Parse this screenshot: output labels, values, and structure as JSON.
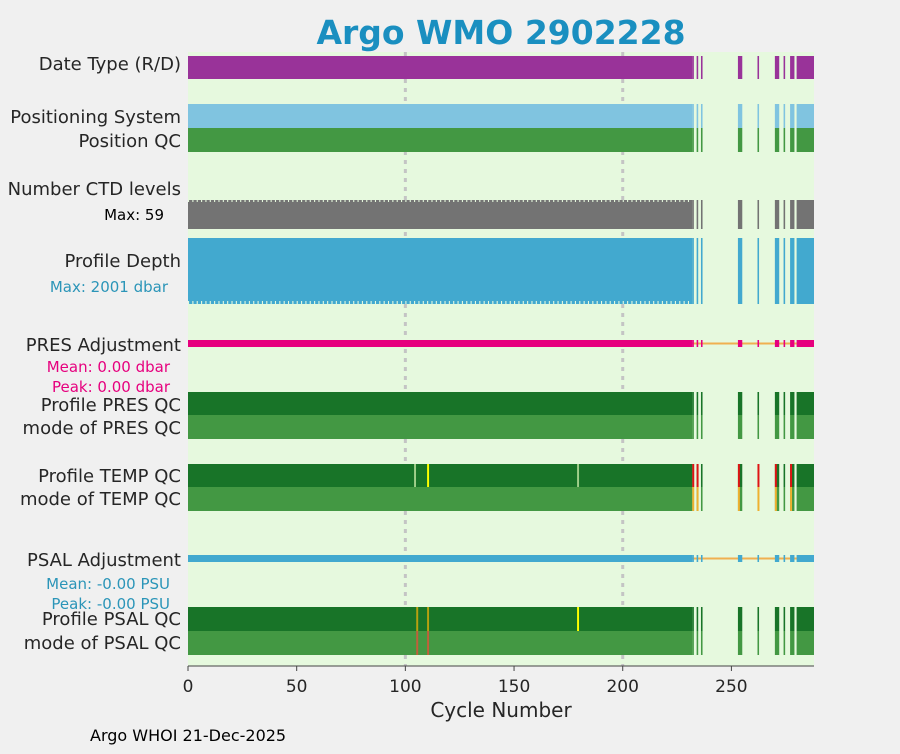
{
  "chart_data": {
    "type": "bar",
    "title": "Argo WMO 2902228",
    "xlabel": "Cycle Number",
    "xlim": [
      0,
      288
    ],
    "xticks": [
      0,
      50,
      100,
      150,
      200,
      250
    ],
    "grid_x": [
      100,
      200
    ],
    "footer": "Argo WHOI 21-Dec-2025",
    "cycles": {
      "ranges": [
        [
          1,
          232
        ],
        [
          233,
          233
        ],
        [
          235,
          235
        ],
        [
          237,
          237
        ],
        [
          254,
          255
        ],
        [
          263,
          263
        ],
        [
          271,
          272
        ],
        [
          275,
          275
        ],
        [
          278,
          279
        ],
        [
          281,
          288
        ]
      ]
    },
    "rows": [
      {
        "id": "date-type",
        "label": "Date Type (R/D)",
        "color": "#993399"
      },
      {
        "id": "positioning-system",
        "label": "Positioning System",
        "color": "#80c4e0"
      },
      {
        "id": "position-qc",
        "label": "Position QC",
        "color": "#439843"
      },
      {
        "id": "n-ctd-levels",
        "label": "Number CTD levels",
        "sublabel": "Max: 59",
        "sublabel_color": "#000000",
        "color": "#737373",
        "max": 59
      },
      {
        "id": "profile-depth",
        "label": "Profile Depth",
        "sublabel": "Max: 2001 dbar",
        "sublabel_color": "#2b95b8",
        "color": "#42a9cf",
        "max_dbar": 2001
      },
      {
        "id": "pres-adjustment",
        "label": "PRES Adjustment",
        "sublabels": [
          "Mean: 0.00 dbar",
          "Peak: 0.00 dbar"
        ],
        "sublabel_color": "#e6007e",
        "color": "#e6007e",
        "mean": 0.0,
        "peak": 0.0
      },
      {
        "id": "profile-pres-qc",
        "label": "Profile PRES QC",
        "color": "#187428"
      },
      {
        "id": "mode-pres-qc",
        "label": "mode of PRES QC",
        "color": "#439843"
      },
      {
        "id": "profile-temp-qc",
        "label": "Profile TEMP QC",
        "color": "#187428",
        "flags": [
          {
            "cycle": 105,
            "color": "#a0cf8a"
          },
          {
            "cycle": 111,
            "color": "#ffff00"
          },
          {
            "cycle": 180,
            "color": "#a0cf8a"
          },
          {
            "cycle": 233,
            "color": "#e01414"
          },
          {
            "cycle": 235,
            "color": "#e01414"
          },
          {
            "cycle": 254,
            "color": "#e01414"
          },
          {
            "cycle": 263,
            "color": "#e01414"
          },
          {
            "cycle": 271,
            "color": "#e01414"
          },
          {
            "cycle": 278,
            "color": "#e01414"
          }
        ]
      },
      {
        "id": "mode-temp-qc",
        "label": "mode of TEMP QC",
        "color": "#439843",
        "flags": [
          {
            "cycle": 233,
            "color": "#f0b030"
          },
          {
            "cycle": 235,
            "color": "#f0b030"
          },
          {
            "cycle": 254,
            "color": "#f0b030"
          },
          {
            "cycle": 263,
            "color": "#f0b030"
          },
          {
            "cycle": 271,
            "color": "#f0b030"
          },
          {
            "cycle": 278,
            "color": "#f0b030"
          }
        ]
      },
      {
        "id": "psal-adjustment",
        "label": "PSAL Adjustment",
        "sublabels": [
          "Mean: -0.00 PSU",
          "Peak: -0.00 PSU"
        ],
        "sublabel_color": "#2b95b8",
        "color": "#42a9cf",
        "mean": -0.0,
        "peak": -0.0
      },
      {
        "id": "profile-psal-qc",
        "label": "Profile PSAL QC",
        "color": "#187428",
        "flags": [
          {
            "cycle": 106,
            "color": "#b8a010"
          },
          {
            "cycle": 111,
            "color": "#b8a010"
          },
          {
            "cycle": 180,
            "color": "#ffff00"
          }
        ]
      },
      {
        "id": "mode-psal-qc",
        "label": "mode of PSAL QC",
        "color": "#439843",
        "flags": [
          {
            "cycle": 106,
            "color": "#c0603a"
          },
          {
            "cycle": 111,
            "color": "#c0603a"
          }
        ]
      }
    ],
    "adjustment_line_color": "#f0b050"
  }
}
